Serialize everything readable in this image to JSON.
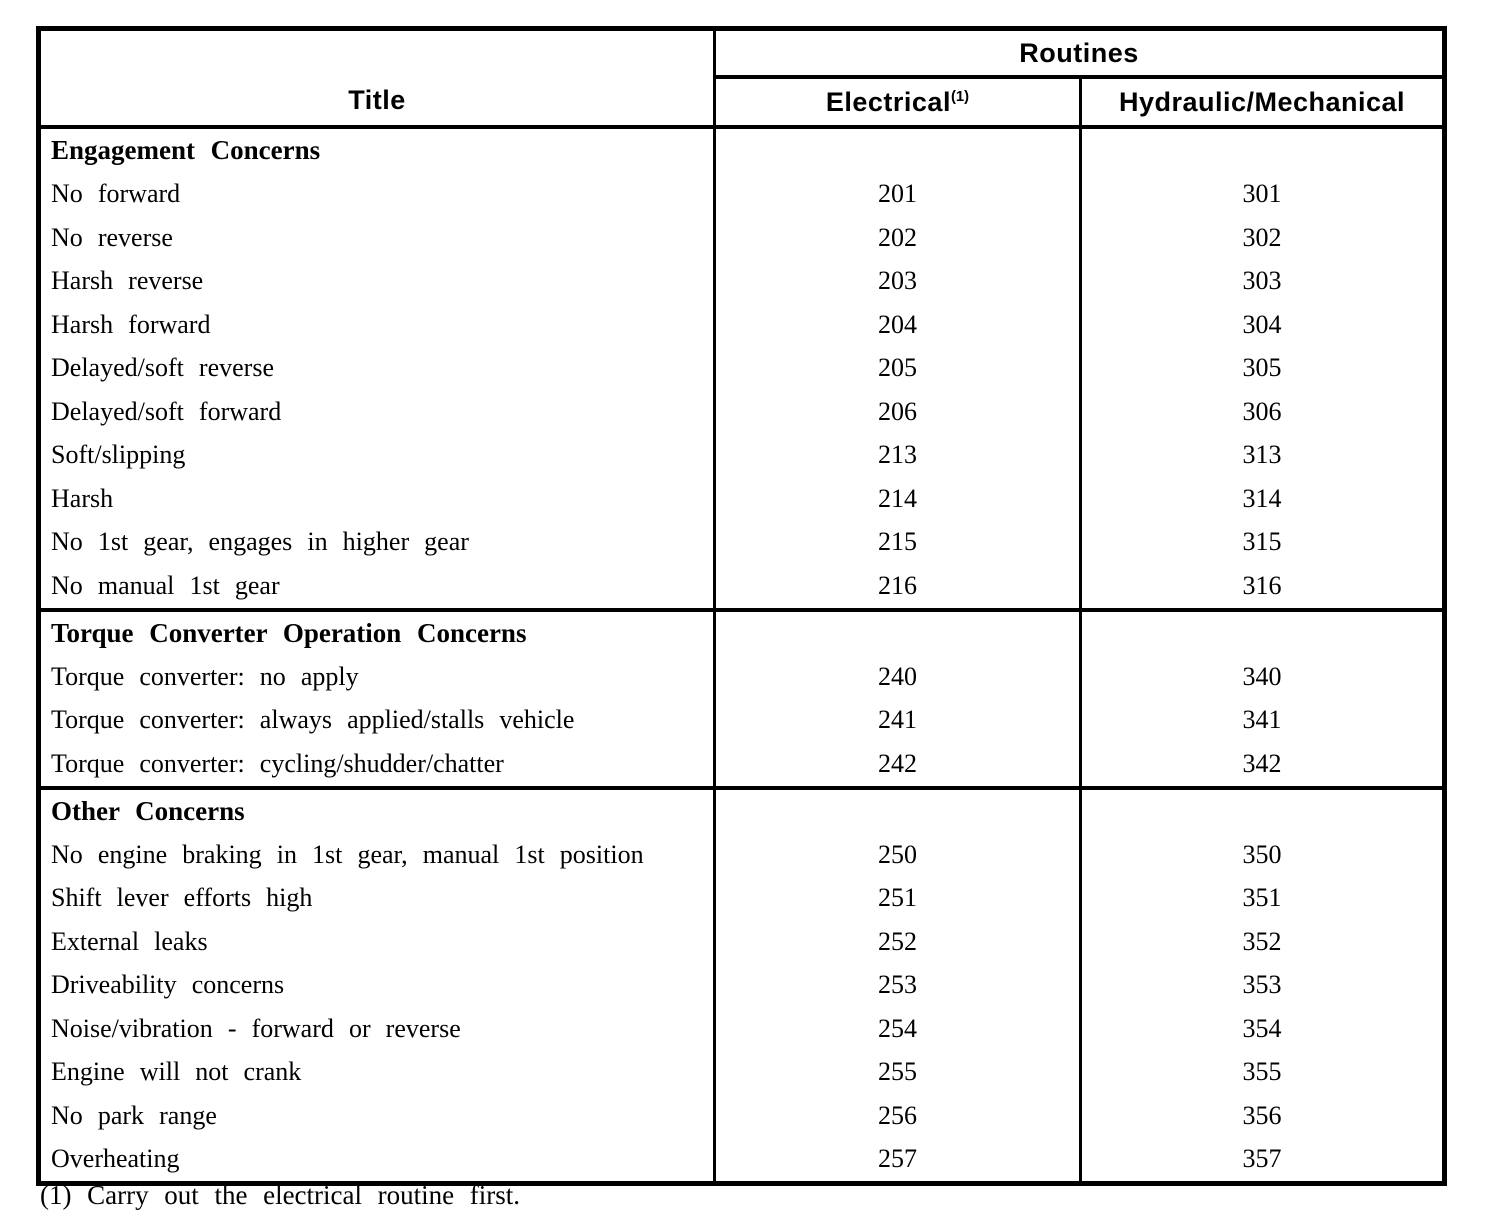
{
  "colors": {
    "ink": "#000000",
    "paper": "#ffffff"
  },
  "table": {
    "columns": {
      "title": "Title",
      "routines_group": "Routines",
      "electrical": "Electrical",
      "electrical_footnote_marker": "(1)",
      "hydraulic": "Hydraulic/Mechanical"
    },
    "sections": [
      {
        "name": "Engagement Concerns",
        "rows": [
          {
            "title": "No forward",
            "electrical": "201",
            "hydraulic": "301"
          },
          {
            "title": "No reverse",
            "electrical": "202",
            "hydraulic": "302"
          },
          {
            "title": "Harsh reverse",
            "electrical": "203",
            "hydraulic": "303"
          },
          {
            "title": "Harsh forward",
            "electrical": "204",
            "hydraulic": "304"
          },
          {
            "title": "Delayed/soft reverse",
            "electrical": "205",
            "hydraulic": "305"
          },
          {
            "title": "Delayed/soft forward",
            "electrical": "206",
            "hydraulic": "306"
          },
          {
            "title": "Soft/slipping",
            "electrical": "213",
            "hydraulic": "313"
          },
          {
            "title": "Harsh",
            "electrical": "214",
            "hydraulic": "314"
          },
          {
            "title": "No 1st gear, engages in higher gear",
            "electrical": "215",
            "hydraulic": "315"
          },
          {
            "title": "No manual 1st gear",
            "electrical": "216",
            "hydraulic": "316"
          }
        ]
      },
      {
        "name": "Torque Converter Operation Concerns",
        "rows": [
          {
            "title": "Torque converter: no apply",
            "electrical": "240",
            "hydraulic": "340"
          },
          {
            "title": "Torque converter: always applied/stalls vehicle",
            "electrical": "241",
            "hydraulic": "341"
          },
          {
            "title": "Torque converter: cycling/shudder/chatter",
            "electrical": "242",
            "hydraulic": "342"
          }
        ]
      },
      {
        "name": "Other Concerns",
        "rows": [
          {
            "title": "No engine braking in 1st gear, manual 1st position",
            "electrical": "250",
            "hydraulic": "350"
          },
          {
            "title": "Shift lever efforts high",
            "electrical": "251",
            "hydraulic": "351"
          },
          {
            "title": "External leaks",
            "electrical": "252",
            "hydraulic": "352"
          },
          {
            "title": "Driveability concerns",
            "electrical": "253",
            "hydraulic": "353"
          },
          {
            "title": "Noise/vibration - forward or reverse",
            "electrical": "254",
            "hydraulic": "354"
          },
          {
            "title": "Engine will not crank",
            "electrical": "255",
            "hydraulic": "355"
          },
          {
            "title": "No park range",
            "electrical": "256",
            "hydraulic": "356"
          },
          {
            "title": "Overheating",
            "electrical": "257",
            "hydraulic": "357"
          }
        ]
      }
    ],
    "footnote": "(1) Carry out the electrical routine first."
  }
}
